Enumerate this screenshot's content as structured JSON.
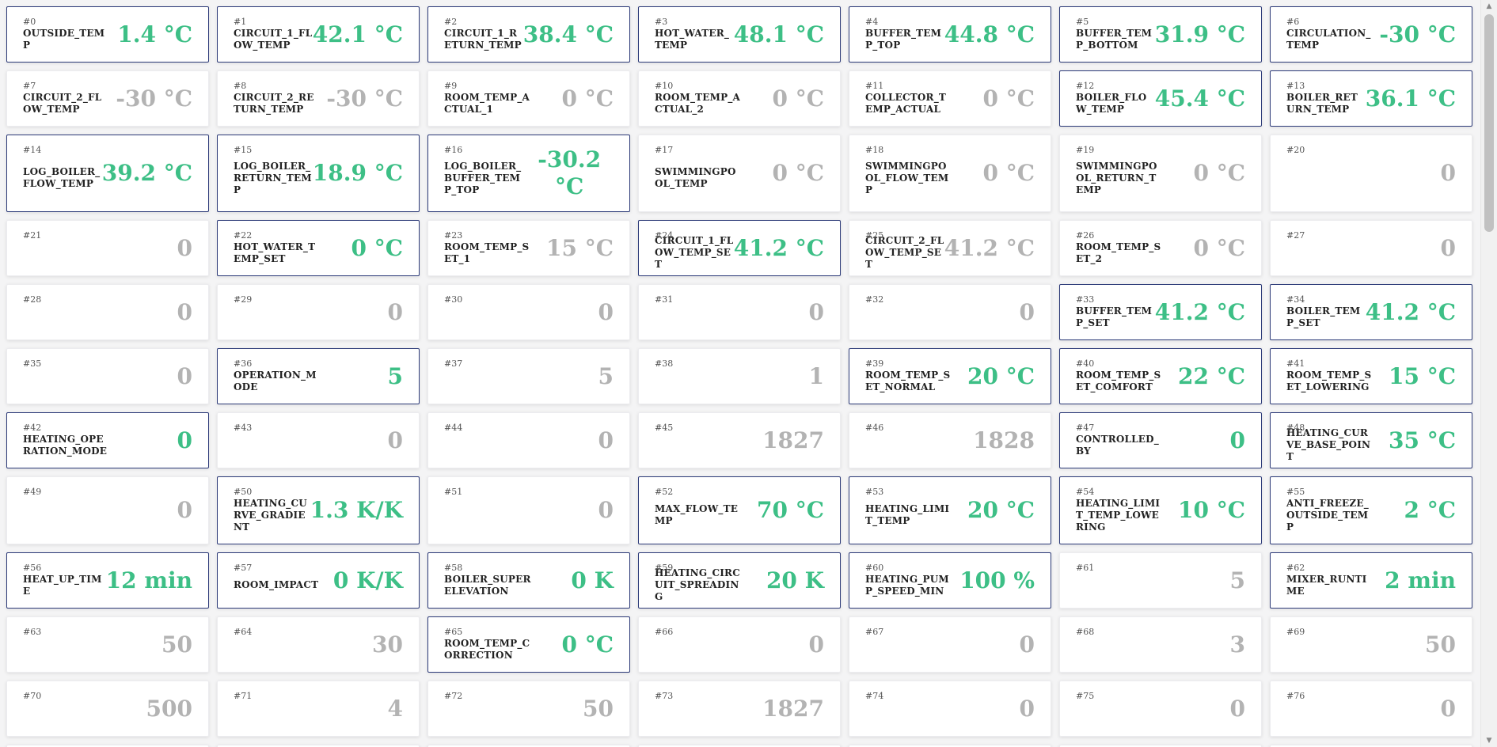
{
  "cards": [
    {
      "index": "#0",
      "label": "OUTSIDE_TEMP",
      "value": "1.4 °C",
      "active": true
    },
    {
      "index": "#1",
      "label": "CIRCUIT_1_FLOW_TEMP",
      "value": "42.1 °C",
      "active": true
    },
    {
      "index": "#2",
      "label": "CIRCUIT_1_RETURN_TEMP",
      "value": "38.4 °C",
      "active": true
    },
    {
      "index": "#3",
      "label": "HOT_WATER_TEMP",
      "value": "48.1 °C",
      "active": true
    },
    {
      "index": "#4",
      "label": "BUFFER_TEMP_TOP",
      "value": "44.8 °C",
      "active": true
    },
    {
      "index": "#5",
      "label": "BUFFER_TEMP_BOTTOM",
      "value": "31.9 °C",
      "active": true
    },
    {
      "index": "#6",
      "label": "CIRCULATION_TEMP",
      "value": "-30 °C",
      "active": true
    },
    {
      "index": "#7",
      "label": "CIRCUIT_2_FLOW_TEMP",
      "value": "-30 °C",
      "active": false
    },
    {
      "index": "#8",
      "label": "CIRCUIT_2_RETURN_TEMP",
      "value": "-30 °C",
      "active": false
    },
    {
      "index": "#9",
      "label": "ROOM_TEMP_ACTUAL_1",
      "value": "0 °C",
      "active": false
    },
    {
      "index": "#10",
      "label": "ROOM_TEMP_ACTUAL_2",
      "value": "0 °C",
      "active": false
    },
    {
      "index": "#11",
      "label": "COLLECTOR_TEMP_ACTUAL",
      "value": "0 °C",
      "active": false
    },
    {
      "index": "#12",
      "label": "BOILER_FLOW_TEMP",
      "value": "45.4 °C",
      "active": true
    },
    {
      "index": "#13",
      "label": "BOILER_RETURN_TEMP",
      "value": "36.1 °C",
      "active": true
    },
    {
      "index": "#14",
      "label": "LOG_BOILER_FLOW_TEMP",
      "value": "39.2 °C",
      "active": true
    },
    {
      "index": "#15",
      "label": "LOG_BOILER_RETURN_TEMP",
      "value": "18.9 °C",
      "active": true
    },
    {
      "index": "#16",
      "label": "LOG_BOILER_BUFFER_TEMP_TOP",
      "value": "-30.2 °C",
      "active": true,
      "wrap": true
    },
    {
      "index": "#17",
      "label": "SWIMMINGPOOL_TEMP",
      "value": "0 °C",
      "active": false
    },
    {
      "index": "#18",
      "label": "SWIMMINGPOOL_FLOW_TEMP",
      "value": "0 °C",
      "active": false
    },
    {
      "index": "#19",
      "label": "SWIMMINGPOOL_RETURN_TEMP",
      "value": "0 °C",
      "active": false
    },
    {
      "index": "#20",
      "label": "",
      "value": "0",
      "active": false
    },
    {
      "index": "#21",
      "label": "",
      "value": "0",
      "active": false
    },
    {
      "index": "#22",
      "label": "HOT_WATER_TEMP_SET",
      "value": "0 °C",
      "active": true
    },
    {
      "index": "#23",
      "label": "ROOM_TEMP_SET_1",
      "value": "15 °C",
      "active": false
    },
    {
      "index": "#24",
      "label": "CIRCUIT_1_FLOW_TEMP_SET",
      "value": "41.2 °C",
      "active": true
    },
    {
      "index": "#25",
      "label": "CIRCUIT_2_FLOW_TEMP_SET",
      "value": "41.2 °C",
      "active": false
    },
    {
      "index": "#26",
      "label": "ROOM_TEMP_SET_2",
      "value": "0 °C",
      "active": false
    },
    {
      "index": "#27",
      "label": "",
      "value": "0",
      "active": false
    },
    {
      "index": "#28",
      "label": "",
      "value": "0",
      "active": false
    },
    {
      "index": "#29",
      "label": "",
      "value": "0",
      "active": false
    },
    {
      "index": "#30",
      "label": "",
      "value": "0",
      "active": false
    },
    {
      "index": "#31",
      "label": "",
      "value": "0",
      "active": false
    },
    {
      "index": "#32",
      "label": "",
      "value": "0",
      "active": false
    },
    {
      "index": "#33",
      "label": "BUFFER_TEMP_SET",
      "value": "41.2 °C",
      "active": true
    },
    {
      "index": "#34",
      "label": "BOILER_TEMP_SET",
      "value": "41.2 °C",
      "active": true
    },
    {
      "index": "#35",
      "label": "",
      "value": "0",
      "active": false
    },
    {
      "index": "#36",
      "label": "OPERATION_MODE",
      "value": "5",
      "active": true
    },
    {
      "index": "#37",
      "label": "",
      "value": "5",
      "active": false
    },
    {
      "index": "#38",
      "label": "",
      "value": "1",
      "active": false
    },
    {
      "index": "#39",
      "label": "ROOM_TEMP_SET_NORMAL",
      "value": "20 °C",
      "active": true
    },
    {
      "index": "#40",
      "label": "ROOM_TEMP_SET_COMFORT",
      "value": "22 °C",
      "active": true
    },
    {
      "index": "#41",
      "label": "ROOM_TEMP_SET_LOWERING",
      "value": "15 °C",
      "active": true
    },
    {
      "index": "#42",
      "label": "HEATING_OPERATION_MODE",
      "value": "0",
      "active": true
    },
    {
      "index": "#43",
      "label": "",
      "value": "0",
      "active": false
    },
    {
      "index": "#44",
      "label": "",
      "value": "0",
      "active": false
    },
    {
      "index": "#45",
      "label": "",
      "value": "1827",
      "active": false
    },
    {
      "index": "#46",
      "label": "",
      "value": "1828",
      "active": false
    },
    {
      "index": "#47",
      "label": "CONTROLLED_BY",
      "value": "0",
      "active": true
    },
    {
      "index": "#48",
      "label": "HEATING_CURVE_BASE_POINT",
      "value": "35 °C",
      "active": true
    },
    {
      "index": "#49",
      "label": "",
      "value": "0",
      "active": false
    },
    {
      "index": "#50",
      "label": "HEATING_CURVE_GRADIENT",
      "value": "1.3 K/K",
      "active": true
    },
    {
      "index": "#51",
      "label": "",
      "value": "0",
      "active": false
    },
    {
      "index": "#52",
      "label": "MAX_FLOW_TEMP",
      "value": "70 °C",
      "active": true
    },
    {
      "index": "#53",
      "label": "HEATING_LIMIT_TEMP",
      "value": "20 °C",
      "active": true
    },
    {
      "index": "#54",
      "label": "HEATING_LIMIT_TEMP_LOWERING",
      "value": "10 °C",
      "active": true
    },
    {
      "index": "#55",
      "label": "ANTI_FREEZE_OUTSIDE_TEMP",
      "value": "2 °C",
      "active": true
    },
    {
      "index": "#56",
      "label": "HEAT_UP_TIME",
      "value": "12 min",
      "active": true
    },
    {
      "index": "#57",
      "label": "ROOM_IMPACT",
      "value": "0 K/K",
      "active": true
    },
    {
      "index": "#58",
      "label": "BOILER_SUPERELEVATION",
      "value": "0 K",
      "active": true
    },
    {
      "index": "#59",
      "label": "HEATING_CIRCUIT_SPREADING",
      "value": "20 K",
      "active": true
    },
    {
      "index": "#60",
      "label": "HEATING_PUMP_SPEED_MIN",
      "value": "100 %",
      "active": true
    },
    {
      "index": "#61",
      "label": "",
      "value": "5",
      "active": false
    },
    {
      "index": "#62",
      "label": "MIXER_RUNTIME",
      "value": "2 min",
      "active": true
    },
    {
      "index": "#63",
      "label": "",
      "value": "50",
      "active": false
    },
    {
      "index": "#64",
      "label": "",
      "value": "30",
      "active": false
    },
    {
      "index": "#65",
      "label": "ROOM_TEMP_CORRECTION",
      "value": "0 °C",
      "active": true
    },
    {
      "index": "#66",
      "label": "",
      "value": "0",
      "active": false
    },
    {
      "index": "#67",
      "label": "",
      "value": "0",
      "active": false
    },
    {
      "index": "#68",
      "label": "",
      "value": "3",
      "active": false
    },
    {
      "index": "#69",
      "label": "",
      "value": "50",
      "active": false
    },
    {
      "index": "#70",
      "label": "",
      "value": "500",
      "active": false
    },
    {
      "index": "#71",
      "label": "",
      "value": "4",
      "active": false
    },
    {
      "index": "#72",
      "label": "",
      "value": "50",
      "active": false
    },
    {
      "index": "#73",
      "label": "",
      "value": "1827",
      "active": false
    },
    {
      "index": "#74",
      "label": "",
      "value": "0",
      "active": false
    },
    {
      "index": "#75",
      "label": "",
      "value": "0",
      "active": false
    },
    {
      "index": "#76",
      "label": "",
      "value": "0",
      "active": false
    }
  ],
  "colors": {
    "active_value": "#3dbf86",
    "inactive_value": "#b3b3b3",
    "active_border": "#2c3a78"
  },
  "scrollbar": {
    "up_icon": "triangle-up-icon",
    "down_icon": "triangle-down-icon"
  }
}
